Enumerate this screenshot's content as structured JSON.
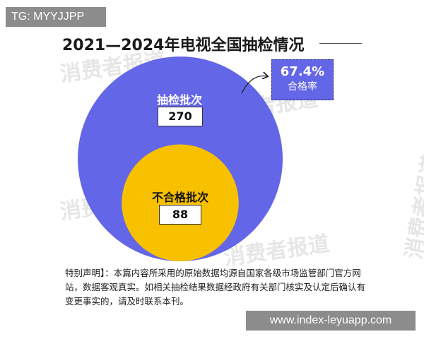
{
  "badge_top": "TG: MYYJJPP",
  "badge_bottom": "www.index-leyuapp.com",
  "watermark": "消费者报道",
  "note": "特别声明】：本篇内容所采用的原始数据均源自国家各级市场监管部门官方网站，数据客观真实。如相关抽检结果数据经政府有关部门核实及认定后确认有变更事实的，请及时联系本刊。",
  "colors": {
    "outer_circle": "#6366e6",
    "inner_circle": "#f8c100",
    "rate_box": "#6366e6"
  },
  "chart_data": {
    "type": "nested-circles",
    "title": "2021—2024年电视全国抽检情况",
    "series": [
      {
        "name": "抽检批次",
        "value": 270
      },
      {
        "name": "不合格批次",
        "value": 88
      }
    ],
    "annotation": {
      "value": "67.4%",
      "label": "合格率"
    }
  }
}
